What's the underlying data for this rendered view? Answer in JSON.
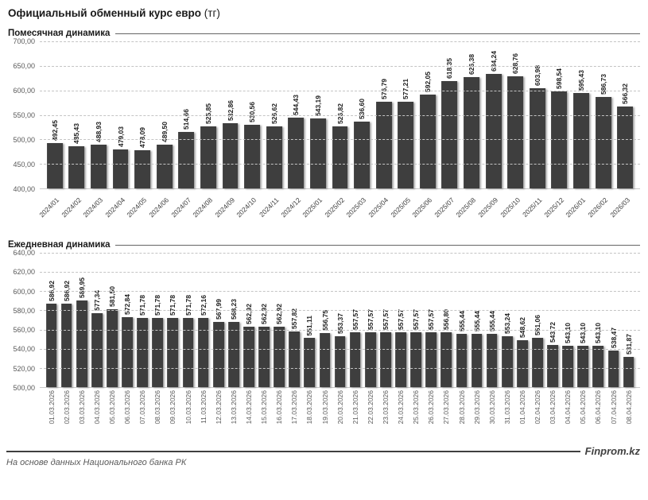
{
  "header": {
    "title_main": "Официальный обменный курс евро",
    "title_suffix": " (тг)"
  },
  "footer": {
    "source": "На основе данных Национального банка РК",
    "brand": "Finprom.kz"
  },
  "colors": {
    "bar": "#3e3e3e",
    "grid": "#c4c4c4",
    "axis_text": "#595959",
    "value_label": "#1f1f1f"
  },
  "chart_data": [
    {
      "type": "bar",
      "title": "Помесячная динамика",
      "categories": [
        "2024/01",
        "2024/02",
        "2024/03",
        "2024/04",
        "2024/05",
        "2024/06",
        "2024/07",
        "2024/08",
        "2024/09",
        "2024/10",
        "2024/11",
        "2024/12",
        "2025/01",
        "2025/02",
        "2025/03",
        "2025/04",
        "2025/05",
        "2025/06",
        "2025/07",
        "2025/08",
        "2025/09",
        "2025/10",
        "2025/11",
        "2025/12",
        "2026/01",
        "2026/02",
        "2026/03"
      ],
      "values": [
        492.45,
        485.43,
        488.93,
        479.03,
        478.09,
        489.5,
        514.66,
        525.85,
        532.86,
        530.56,
        526.62,
        544.43,
        543.19,
        526.82,
        536.6,
        576.79,
        577.21,
        592.05,
        618.35,
        626.38,
        634.24,
        628.76,
        603.98,
        598.54,
        595.43,
        586.73,
        566.32
      ],
      "ylim": [
        400,
        700
      ],
      "ytick_step": 50,
      "grid": true,
      "legend": false,
      "decimal_separator": ",",
      "xlabel_rotation": 45,
      "value_label_rotation": 90
    },
    {
      "type": "bar",
      "title": "Ежедневная динамика",
      "categories": [
        "01.03.2026",
        "02.03.2026",
        "03.03.2026",
        "04.03.2026",
        "05.03.2026",
        "06.03.2026",
        "07.03.2026",
        "08.03.2026",
        "09.03.2026",
        "10.03.2026",
        "11.03.2026",
        "12.03.2026",
        "13.03.2026",
        "14.03.2026",
        "15.03.2026",
        "16.03.2026",
        "17.03.2026",
        "18.03.2026",
        "19.03.2026",
        "20.03.2026",
        "21.03.2026",
        "22.03.2026",
        "23.03.2026",
        "24.03.2026",
        "25.03.2026",
        "26.03.2026",
        "27.03.2026",
        "28.03.2026",
        "29.03.2026",
        "30.03.2026",
        "31.03.2026",
        "01.04.2026",
        "02.04.2026",
        "03.04.2026",
        "04.04.2026",
        "05.04.2026",
        "06.04.2026",
        "07.04.2026",
        "08.04.2026"
      ],
      "values": [
        586.92,
        586.92,
        589.95,
        577.34,
        581.5,
        572.84,
        571.78,
        571.78,
        571.78,
        571.78,
        572.16,
        567.99,
        568.23,
        562.92,
        562.92,
        562.92,
        557.82,
        551.11,
        556.75,
        553.37,
        557.57,
        557.57,
        557.57,
        557.57,
        557.57,
        557.57,
        556.8,
        555.44,
        555.44,
        555.44,
        553.24,
        548.62,
        551.06,
        543.72,
        543.1,
        543.1,
        543.1,
        538.47,
        531.87
      ],
      "ylim": [
        500,
        640
      ],
      "ytick_step": 20,
      "grid": true,
      "legend": false,
      "decimal_separator": ",",
      "xlabel_rotation": 90,
      "value_label_rotation": 90
    }
  ]
}
